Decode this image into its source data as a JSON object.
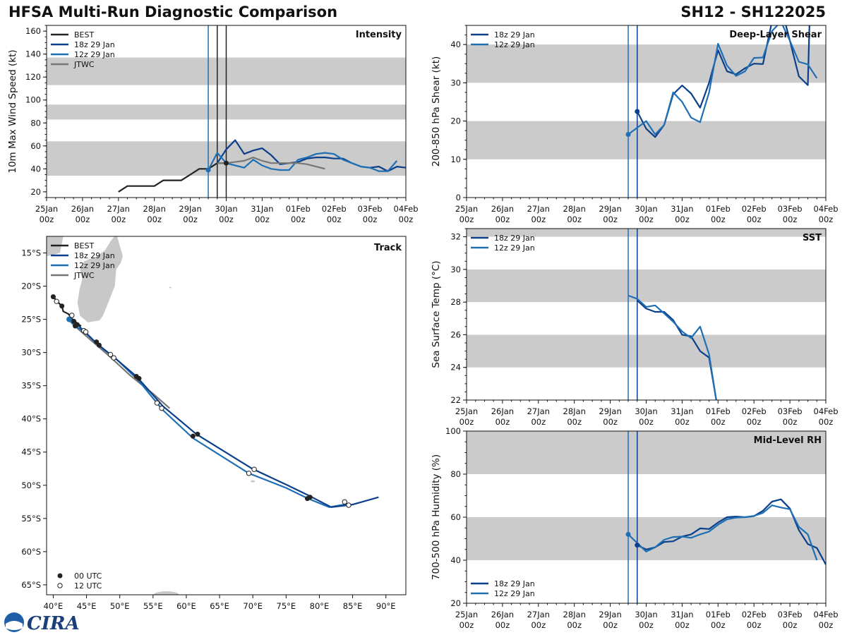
{
  "title": "HFSA Multi-Run Diagnostic Comparison",
  "storm_id": "SH12 - SH122025",
  "logo_text": "CIRA",
  "colors": {
    "best": "#222222",
    "run18": "#0b3f8c",
    "run12": "#1f6fb4",
    "jtwc": "#777777",
    "band": "#cbcbcb"
  },
  "time_ticks": [
    {
      "date": "25Jan",
      "hour": "00z"
    },
    {
      "date": "26Jan",
      "hour": "00z"
    },
    {
      "date": "27Jan",
      "hour": "00z"
    },
    {
      "date": "28Jan",
      "hour": "00z"
    },
    {
      "date": "29Jan",
      "hour": "00z"
    },
    {
      "date": "30Jan",
      "hour": "00z"
    },
    {
      "date": "31Jan",
      "hour": "00z"
    },
    {
      "date": "01Feb",
      "hour": "00z"
    },
    {
      "date": "02Feb",
      "hour": "00z"
    },
    {
      "date": "03Feb",
      "hour": "00z"
    },
    {
      "date": "04Feb",
      "hour": "00z"
    }
  ],
  "chart_data": [
    {
      "id": "intensity",
      "type": "line",
      "title": "Intensity",
      "ylabel": "10m Max Wind Speed (kt)",
      "xlim": [
        0,
        10
      ],
      "ylim": [
        15,
        165
      ],
      "yticks": [
        20,
        40,
        60,
        80,
        100,
        120,
        140,
        160
      ],
      "bands": [
        [
          34,
          64
        ],
        [
          83,
          96
        ],
        [
          113,
          137
        ]
      ],
      "vlines": [
        {
          "x": 4.5,
          "series": "run12"
        },
        {
          "x": 4.75,
          "series": "best"
        },
        {
          "x": 5.0,
          "series": "best"
        }
      ],
      "series": [
        {
          "name": "BEST",
          "key": "best",
          "x": [
            0.0,
            0.25,
            0.5,
            0.75,
            1.0,
            1.25,
            1.5,
            1.75,
            2.0,
            2.25,
            2.5,
            2.75,
            3.0,
            3.25,
            3.5,
            3.75,
            4.0,
            4.25,
            4.5,
            4.75,
            5.0
          ],
          "y": [
            null,
            null,
            null,
            null,
            null,
            null,
            null,
            null,
            20,
            25,
            25,
            25,
            25,
            30,
            30,
            30,
            35,
            40,
            40,
            45,
            45
          ]
        },
        {
          "name": "18z 29 Jan",
          "key": "run18",
          "x": [
            4.75,
            5.0,
            5.25,
            5.5,
            5.75,
            6.0,
            6.25,
            6.5,
            6.75,
            7.0,
            7.25,
            7.5,
            7.75,
            8.0,
            8.25,
            8.5,
            8.75,
            9.0,
            9.25,
            9.5,
            9.75,
            10.0
          ],
          "y": [
            45,
            57,
            65,
            53,
            56,
            58,
            52,
            44,
            45,
            46,
            49,
            50,
            50,
            49,
            49,
            45,
            42,
            41,
            42,
            38,
            42,
            41
          ]
        },
        {
          "name": "12z 29 Jan",
          "key": "run12",
          "x": [
            4.5,
            4.75,
            5.0,
            5.25,
            5.5,
            5.75,
            6.0,
            6.25,
            6.5,
            6.75,
            7.0,
            7.25,
            7.5,
            7.75,
            8.0,
            8.25,
            8.5,
            8.75,
            9.0,
            9.25,
            9.5,
            9.75
          ],
          "y": [
            39,
            54,
            45,
            43,
            41,
            48,
            43,
            40,
            39,
            39,
            48,
            50,
            53,
            54,
            53,
            48,
            45,
            42,
            41,
            38,
            38,
            47
          ]
        },
        {
          "name": "JTWC",
          "key": "jtwc",
          "x": [
            4.75,
            5.0,
            5.5,
            5.75,
            6.0,
            6.25,
            6.5,
            6.75,
            7.0,
            7.25,
            7.5,
            7.75
          ],
          "y": [
            45,
            45,
            47,
            50,
            47,
            45,
            45,
            45,
            45,
            44,
            42,
            40
          ]
        }
      ],
      "markers": [
        {
          "x": 4.5,
          "y": 39,
          "series": "run12"
        },
        {
          "x": 5.0,
          "y": 45,
          "series": "best"
        }
      ]
    },
    {
      "id": "shear",
      "type": "line",
      "title": "Deep-Layer Shear",
      "ylabel": "200-850 hPa Shear (kt)",
      "xlim": [
        0,
        10
      ],
      "ylim": [
        0,
        45
      ],
      "yticks": [
        0,
        10,
        20,
        30,
        40
      ],
      "bands": [
        [
          10,
          20
        ],
        [
          30,
          40
        ]
      ],
      "vlines": [
        {
          "x": 4.5,
          "series": "run12"
        },
        {
          "x": 4.75,
          "series": "run18"
        }
      ],
      "series": [
        {
          "name": "18z 29 Jan",
          "key": "run18",
          "x": [
            4.75,
            5.0,
            5.25,
            5.5,
            5.75,
            6.0,
            6.25,
            6.5,
            6.75,
            7.0,
            7.25,
            7.5,
            7.75,
            8.0,
            8.25,
            8.5,
            8.75,
            9.0,
            9.25,
            9.5,
            9.55
          ],
          "y": [
            22.5,
            18,
            15.8,
            19,
            27,
            29.3,
            27.2,
            23.5,
            30,
            38.5,
            33,
            32.2,
            33.8,
            35,
            34.9,
            46,
            50,
            41,
            31.7,
            29.4,
            47
          ]
        },
        {
          "name": "12z 29 Jan",
          "key": "run12",
          "x": [
            4.5,
            5.0,
            5.25,
            5.5,
            5.75,
            6.0,
            6.25,
            6.5,
            6.75,
            7.0,
            7.25,
            7.5,
            7.75,
            8.0,
            8.25,
            8.5,
            8.75,
            9.0,
            9.25,
            9.5,
            9.75
          ],
          "y": [
            16.5,
            20,
            16.5,
            19,
            27.5,
            25,
            20.9,
            19.7,
            27.5,
            40.2,
            34.5,
            31.8,
            33,
            36.5,
            36.6,
            43.5,
            46,
            41,
            35.5,
            34.8,
            31.2
          ]
        }
      ],
      "markers": [
        {
          "x": 4.5,
          "y": 16.5,
          "series": "run12"
        },
        {
          "x": 4.75,
          "y": 22.5,
          "series": "run18"
        }
      ]
    },
    {
      "id": "sst",
      "type": "line",
      "title": "SST",
      "ylabel": "Sea Surface Temp (°C)",
      "xlim": [
        0,
        10
      ],
      "ylim": [
        22,
        32.5
      ],
      "yticks": [
        22,
        24,
        26,
        28,
        30,
        32
      ],
      "bands": [
        [
          24,
          26
        ],
        [
          28,
          30
        ],
        [
          32,
          34
        ]
      ],
      "vlines": [
        {
          "x": 4.5,
          "series": "run12"
        },
        {
          "x": 4.75,
          "series": "run18"
        }
      ],
      "series": [
        {
          "name": "18z 29 Jan",
          "key": "run18",
          "x": [
            4.75,
            5.0,
            5.25,
            5.5,
            5.75,
            6.0,
            6.25,
            6.5,
            6.75,
            6.95,
            7.0
          ],
          "y": [
            28.1,
            27.6,
            27.4,
            27.4,
            26.9,
            26.0,
            25.9,
            25.0,
            24.6,
            22.0,
            21.2
          ]
        },
        {
          "name": "12z 29 Jan",
          "key": "run12",
          "x": [
            4.5,
            4.75,
            5.0,
            5.25,
            5.5,
            5.75,
            6.0,
            6.25,
            6.5,
            6.75,
            6.95,
            7.0
          ],
          "y": [
            28.4,
            28.2,
            27.7,
            27.8,
            27.3,
            26.8,
            26.2,
            25.8,
            26.5,
            24.8,
            22.0,
            21.2
          ]
        }
      ]
    },
    {
      "id": "rh",
      "type": "line",
      "title": "Mid-Level RH",
      "ylabel": "700-500 hPa Humidity (%)",
      "xlim": [
        0,
        10
      ],
      "ylim": [
        20,
        100
      ],
      "yticks": [
        20,
        40,
        60,
        80,
        100
      ],
      "bands": [
        [
          40,
          60
        ],
        [
          80,
          100
        ]
      ],
      "vlines": [
        {
          "x": 4.5,
          "series": "run12"
        },
        {
          "x": 4.75,
          "series": "run18"
        }
      ],
      "series": [
        {
          "name": "18z 29 Jan",
          "key": "run18",
          "x": [
            4.75,
            5.0,
            5.25,
            5.5,
            5.75,
            6.0,
            6.25,
            6.5,
            6.75,
            7.0,
            7.25,
            7.5,
            7.75,
            8.0,
            8.25,
            8.5,
            8.75,
            9.0,
            9.25,
            9.5,
            9.75,
            10.0
          ],
          "y": [
            47,
            45,
            46,
            48.5,
            48.8,
            51,
            52,
            54.8,
            54.5,
            57.5,
            60,
            60.3,
            60,
            60.5,
            63,
            67.2,
            68.3,
            64,
            54,
            47.5,
            45.7,
            38
          ]
        },
        {
          "name": "12z 29 Jan",
          "key": "run12",
          "x": [
            4.5,
            4.75,
            5.0,
            5.25,
            5.5,
            5.75,
            6.0,
            6.25,
            6.5,
            6.75,
            7.0,
            7.25,
            7.5,
            7.75,
            8.0,
            8.25,
            8.5,
            8.75,
            9.0,
            9.25,
            9.5,
            9.75
          ],
          "y": [
            52,
            48,
            44,
            46,
            49.5,
            50.8,
            51,
            50.4,
            52,
            53.3,
            56.5,
            59,
            59.8,
            60,
            60.6,
            62,
            65.5,
            64.5,
            63.7,
            55.5,
            52,
            40
          ]
        }
      ],
      "markers": [
        {
          "x": 4.5,
          "y": 52,
          "series": "run12"
        },
        {
          "x": 4.75,
          "y": 47,
          "series": "run18"
        }
      ]
    },
    {
      "id": "track",
      "type": "scatter",
      "title": "Track",
      "xlim": [
        39,
        93
      ],
      "ylim": [
        -66.5,
        -12.5
      ],
      "xticks": [
        40,
        45,
        50,
        55,
        60,
        65,
        70,
        75,
        80,
        85,
        90
      ],
      "xtick_labels": [
        "40°E",
        "45°E",
        "50°E",
        "55°E",
        "60°E",
        "65°E",
        "70°E",
        "75°E",
        "80°E",
        "85°E",
        "90°E"
      ],
      "yticks": [
        -15,
        -20,
        -25,
        -30,
        -35,
        -40,
        -45,
        -50,
        -55,
        -60,
        -65
      ],
      "ytick_labels": [
        "15°S",
        "20°S",
        "25°S",
        "30°S",
        "35°S",
        "40°S",
        "45°S",
        "50°S",
        "55°S",
        "60°S",
        "65°S"
      ],
      "series": [
        {
          "name": "BEST",
          "key": "best",
          "lon": [
            40.0,
            40.5,
            41.3,
            41.5,
            42.3,
            42.8,
            43.4,
            43.8,
            44.2
          ],
          "lat": [
            -21.6,
            -22.2,
            -23.0,
            -23.8,
            -24.2,
            -24.9,
            -25.4,
            -25.8,
            -26.0
          ]
        },
        {
          "name": "18z 29 Jan",
          "key": "run18",
          "lon": [
            42.5,
            43.5,
            44.6,
            46.5,
            49.0,
            52.5,
            56.5,
            61.5,
            69.9,
            75.0,
            78.5,
            81.8,
            85.0,
            88.9
          ],
          "lat": [
            -24.9,
            -25.6,
            -26.8,
            -28.6,
            -30.6,
            -33.6,
            -38.1,
            -42.3,
            -47.5,
            -49.9,
            -51.6,
            -53.3,
            -52.9,
            -51.8
          ]
        },
        {
          "name": "12z 29 Jan",
          "key": "run12",
          "lon": [
            42.3,
            43.2,
            44.8,
            46.8,
            49.6,
            52.8,
            56.4,
            61.0,
            69.4,
            75.0,
            78.3,
            81.5,
            84.3
          ],
          "lat": [
            -25.0,
            -26.0,
            -26.9,
            -28.9,
            -31.1,
            -34.2,
            -38.6,
            -42.9,
            -48.2,
            -50.4,
            -52.0,
            -53.3,
            -52.8
          ]
        },
        {
          "name": "JTWC",
          "key": "jtwc",
          "lon": [
            43.0,
            45.5,
            48.5,
            51.5,
            55.0,
            57.5
          ],
          "lat": [
            -25.8,
            -28.0,
            -30.6,
            -33.4,
            -36.2,
            -38.4
          ]
        }
      ],
      "points_00utc": [
        [
          40.0,
          -21.6
        ],
        [
          41.3,
          -23.0
        ],
        [
          43.1,
          -25.3
        ],
        [
          43.6,
          -25.8
        ],
        [
          43.3,
          -26.0
        ],
        [
          46.5,
          -28.4
        ],
        [
          46.9,
          -28.9
        ],
        [
          52.5,
          -33.6
        ],
        [
          52.9,
          -33.9
        ],
        [
          61.0,
          -42.6
        ],
        [
          61.7,
          -42.3
        ],
        [
          78.2,
          -52.0
        ],
        [
          78.6,
          -51.8
        ]
      ],
      "points_12utc": [
        [
          40.5,
          -22.3
        ],
        [
          42.8,
          -24.4
        ],
        [
          44.6,
          -26.7
        ],
        [
          44.9,
          -26.9
        ],
        [
          48.6,
          -30.3
        ],
        [
          49.1,
          -30.8
        ],
        [
          55.6,
          -37.6
        ],
        [
          56.3,
          -38.4
        ],
        [
          69.4,
          -48.2
        ],
        [
          70.2,
          -47.6
        ],
        [
          83.8,
          -52.5
        ],
        [
          84.4,
          -53.0
        ]
      ],
      "start_point": [
        42.4,
        -25.0
      ],
      "marker_legend": [
        {
          "label": "00 UTC",
          "fill": "filled"
        },
        {
          "label": "12 UTC",
          "fill": "open"
        }
      ]
    }
  ]
}
